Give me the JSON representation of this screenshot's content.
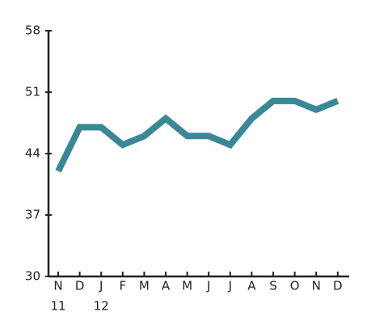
{
  "chart_data": {
    "type": "line",
    "categories": [
      "N",
      "D",
      "J",
      "F",
      "M",
      "A",
      "M",
      "J",
      "J",
      "A",
      "S",
      "O",
      "N",
      "D"
    ],
    "years": [
      "11",
      null,
      "12",
      null,
      null,
      null,
      null,
      null,
      null,
      null,
      null,
      null,
      null,
      null
    ],
    "values": [
      42,
      47,
      47,
      45,
      46,
      48,
      46,
      46,
      45,
      48,
      50,
      50,
      49,
      50
    ],
    "color": "#3a8797",
    "ylim": [
      30,
      58
    ],
    "yticks": [
      30,
      37,
      44,
      51,
      58
    ]
  }
}
